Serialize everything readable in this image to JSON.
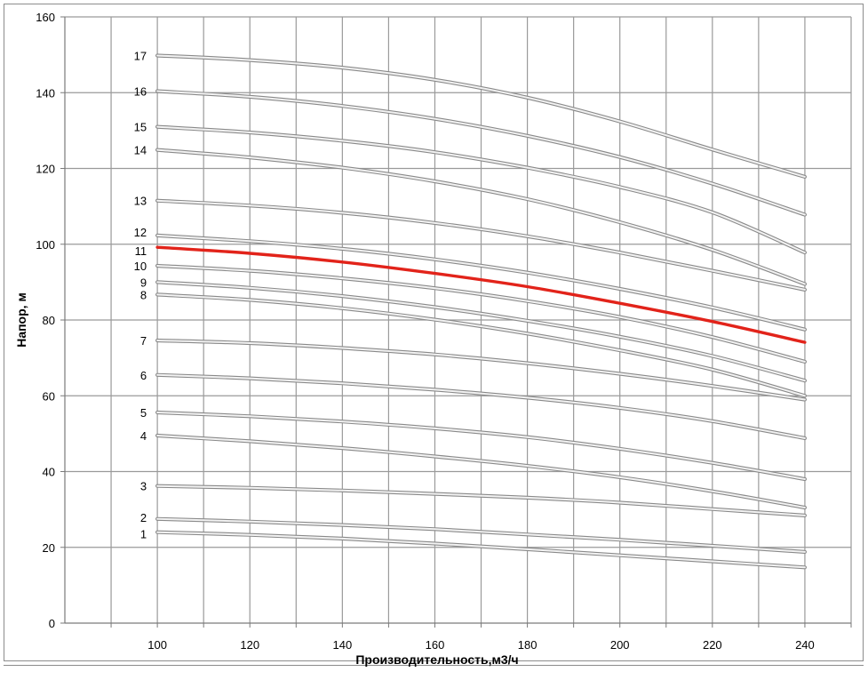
{
  "chart_data": {
    "type": "line",
    "xlabel": "Производительность,м3/ч",
    "ylabel": "Напор, м",
    "xlim": [
      80,
      250
    ],
    "ylim": [
      0,
      160
    ],
    "x_ticks": [
      100,
      120,
      140,
      160,
      180,
      200,
      220,
      240
    ],
    "y_ticks": [
      0,
      20,
      40,
      60,
      80,
      100,
      120,
      140,
      160
    ],
    "grid": true,
    "x": [
      100,
      120,
      140,
      160,
      180,
      200,
      220,
      240
    ],
    "series": [
      {
        "name": "1",
        "values": [
          24.0,
          23.3,
          22.3,
          21.0,
          19.5,
          17.9,
          16.3,
          14.7
        ],
        "color": "#c8c8c8"
      },
      {
        "name": "2",
        "values": [
          27.5,
          26.8,
          25.9,
          24.8,
          23.4,
          22.0,
          20.4,
          18.8
        ],
        "color": "#c8c8c8"
      },
      {
        "name": "3",
        "values": [
          36.2,
          35.7,
          35.0,
          34.1,
          33.1,
          31.8,
          30.1,
          28.4
        ],
        "color": "#c8c8c8"
      },
      {
        "name": "4",
        "values": [
          49.5,
          48.0,
          46.2,
          44.0,
          41.5,
          38.5,
          34.8,
          30.5
        ],
        "color": "#c8c8c8"
      },
      {
        "name": "5",
        "values": [
          55.6,
          54.6,
          53.2,
          51.4,
          49.1,
          46.0,
          42.3,
          38.0
        ],
        "color": "#c8c8c8"
      },
      {
        "name": "6",
        "values": [
          65.5,
          64.6,
          63.3,
          61.6,
          59.5,
          56.8,
          53.3,
          48.8
        ],
        "color": "#c8c8c8"
      },
      {
        "name": "7",
        "values": [
          74.6,
          73.9,
          72.6,
          70.9,
          68.6,
          65.8,
          62.6,
          59.0
        ],
        "color": "#c8c8c8"
      },
      {
        "name": "8",
        "values": [
          86.7,
          85.3,
          83.1,
          80.1,
          76.4,
          72.0,
          66.9,
          60.0
        ],
        "color": "#c8c8c8"
      },
      {
        "name": "9",
        "values": [
          90.0,
          88.5,
          86.3,
          83.4,
          79.8,
          75.6,
          70.5,
          64.0
        ],
        "color": "#c8c8c8"
      },
      {
        "name": "10",
        "values": [
          94.3,
          93.0,
          91.0,
          88.4,
          85.0,
          80.8,
          75.5,
          69.0
        ],
        "color": "#c8c8c8"
      },
      {
        "name": "11",
        "values": [
          99.2,
          97.6,
          95.3,
          92.3,
          88.8,
          84.4,
          79.6,
          74.1
        ],
        "color": "#e2231a"
      },
      {
        "name": "12",
        "values": [
          102.3,
          100.8,
          98.8,
          96.0,
          92.5,
          88.2,
          83.3,
          77.5
        ],
        "color": "#c8c8c8"
      },
      {
        "name": "13",
        "values": [
          111.5,
          110.2,
          108.3,
          105.6,
          102.1,
          97.8,
          93.0,
          88.0
        ],
        "color": "#c8c8c8"
      },
      {
        "name": "14",
        "values": [
          124.9,
          122.9,
          120.2,
          116.6,
          111.9,
          105.8,
          98.5,
          89.5
        ],
        "color": "#c8c8c8"
      },
      {
        "name": "15",
        "values": [
          131.0,
          129.5,
          127.3,
          124.3,
          120.2,
          115.1,
          108.4,
          97.8
        ],
        "color": "#c8c8c8"
      },
      {
        "name": "16",
        "values": [
          140.4,
          138.9,
          136.5,
          133.1,
          128.6,
          123.0,
          116.0,
          107.8
        ],
        "color": "#c8c8c8"
      },
      {
        "name": "17",
        "values": [
          149.8,
          148.6,
          146.6,
          143.4,
          138.7,
          132.4,
          125.0,
          117.8
        ],
        "color": "#c8c8c8"
      }
    ]
  }
}
